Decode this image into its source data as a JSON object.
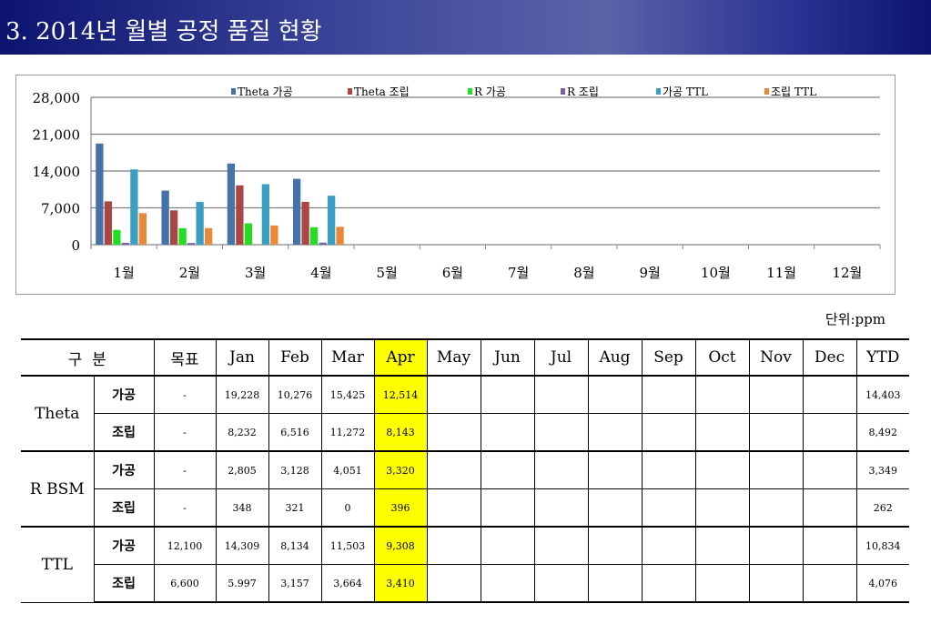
{
  "header": {
    "title": "3. 2014년 월별 공정 품질 현황"
  },
  "unit_label": "단위:ppm",
  "colors": {
    "theta_process": "#4572a7",
    "theta_assembly": "#aa4643",
    "r_process": "#22dd22",
    "r_assembly": "#7e5fa1",
    "process_ttl": "#3d9ec4",
    "assembly_ttl": "#e8893a"
  },
  "chart_data": {
    "type": "bar",
    "title": "",
    "xlabel": "",
    "ylabel": "",
    "ylim": [
      0,
      28000
    ],
    "yticks": [
      0,
      7000,
      14000,
      21000,
      28000
    ],
    "ytick_labels": [
      "0",
      "7,000",
      "14,000",
      "21,000",
      "28,000"
    ],
    "grid": true,
    "legend_position": "top",
    "categories": [
      "1월",
      "2월",
      "3월",
      "4월",
      "5월",
      "6월",
      "7월",
      "8월",
      "9월",
      "10월",
      "11월",
      "12월"
    ],
    "series": [
      {
        "name": "Theta 가공",
        "color": "#4572a7",
        "values": [
          19228,
          10276,
          15425,
          12514,
          null,
          null,
          null,
          null,
          null,
          null,
          null,
          null
        ]
      },
      {
        "name": "Theta 조립",
        "color": "#aa4643",
        "values": [
          8232,
          6516,
          11272,
          8143,
          null,
          null,
          null,
          null,
          null,
          null,
          null,
          null
        ]
      },
      {
        "name": "R 가공",
        "color": "#22dd22",
        "values": [
          2805,
          3128,
          4051,
          3320,
          null,
          null,
          null,
          null,
          null,
          null,
          null,
          null
        ]
      },
      {
        "name": "R 조립",
        "color": "#7e5fa1",
        "values": [
          348,
          321,
          0,
          396,
          null,
          null,
          null,
          null,
          null,
          null,
          null,
          null
        ]
      },
      {
        "name": "가공 TTL",
        "color": "#3d9ec4",
        "values": [
          14309,
          8134,
          11503,
          9308,
          null,
          null,
          null,
          null,
          null,
          null,
          null,
          null
        ]
      },
      {
        "name": "조립 TTL",
        "color": "#e8893a",
        "values": [
          5997,
          3157,
          3664,
          3410,
          null,
          null,
          null,
          null,
          null,
          null,
          null,
          null
        ]
      }
    ]
  },
  "table": {
    "headers": {
      "category": "구  분",
      "target": "목표",
      "months": [
        "Jan",
        "Feb",
        "Mar",
        "Apr",
        "May",
        "Jun",
        "Jul",
        "Aug",
        "Sep",
        "Oct",
        "Nov",
        "Dec"
      ],
      "ytd": "YTD"
    },
    "highlight_month_index": 3,
    "groups": [
      {
        "name": "Theta",
        "rows": [
          {
            "sub": "가공",
            "target": "-",
            "values": [
              "19,228",
              "10,276",
              "15,425",
              "12,514",
              "",
              "",
              "",
              "",
              "",
              "",
              "",
              ""
            ],
            "ytd": "14,403"
          },
          {
            "sub": "조립",
            "target": "-",
            "values": [
              "8,232",
              "6,516",
              "11,272",
              "8,143",
              "",
              "",
              "",
              "",
              "",
              "",
              "",
              ""
            ],
            "ytd": "8,492"
          }
        ]
      },
      {
        "name": "R BSM",
        "rows": [
          {
            "sub": "가공",
            "target": "-",
            "values": [
              "2,805",
              "3,128",
              "4,051",
              "3,320",
              "",
              "",
              "",
              "",
              "",
              "",
              "",
              ""
            ],
            "ytd": "3,349"
          },
          {
            "sub": "조립",
            "target": "-",
            "values": [
              "348",
              "321",
              "0",
              "396",
              "",
              "",
              "",
              "",
              "",
              "",
              "",
              ""
            ],
            "ytd": "262"
          }
        ]
      },
      {
        "name": "TTL",
        "rows": [
          {
            "sub": "가공",
            "target": "12,100",
            "values": [
              "14,309",
              "8,134",
              "11,503",
              "9,308",
              "",
              "",
              "",
              "",
              "",
              "",
              "",
              ""
            ],
            "ytd": "10,834"
          },
          {
            "sub": "조립",
            "target": "6,600",
            "values": [
              "5.997",
              "3,157",
              "3,664",
              "3,410",
              "",
              "",
              "",
              "",
              "",
              "",
              "",
              ""
            ],
            "ytd": "4,076"
          }
        ]
      }
    ]
  }
}
